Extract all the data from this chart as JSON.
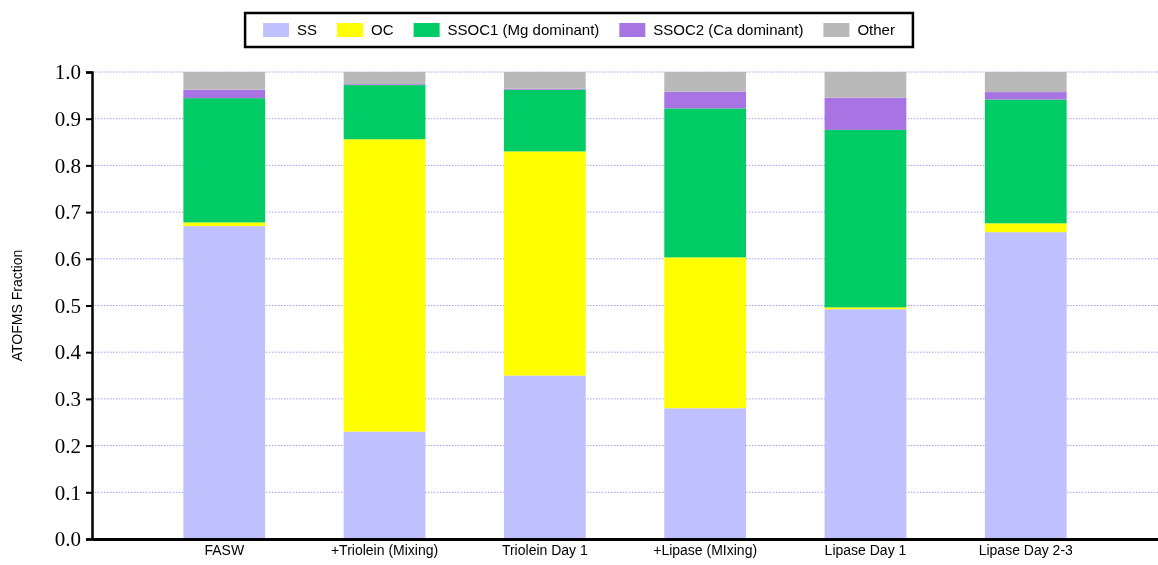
{
  "chart_data": {
    "type": "bar",
    "stacked": true,
    "ylabel": "ATOFMS Fraction",
    "categories": [
      "FASW",
      "+Triolein (Mixing)",
      "Triolein Day 1",
      "+Lipase (MIxing)",
      "Lipase Day 1",
      "Lipase Day 2-3"
    ],
    "series": [
      {
        "name": "SS",
        "color": "#bfc0fe",
        "values": [
          0.67,
          0.23,
          0.35,
          0.28,
          0.492,
          0.657
        ]
      },
      {
        "name": "OC",
        "color": "#ffff00",
        "values": [
          0.008,
          0.626,
          0.48,
          0.323,
          0.004,
          0.019
        ]
      },
      {
        "name": "SSOC1 (Mg dominant)",
        "color": "#00cc66",
        "values": [
          0.266,
          0.116,
          0.132,
          0.319,
          0.38,
          0.265
        ]
      },
      {
        "name": "SSOC2 (Ca dominant)",
        "color": "#a874e4",
        "values": [
          0.018,
          0.002,
          0.002,
          0.036,
          0.069,
          0.016
        ]
      },
      {
        "name": "Other",
        "color": "#b9b9b9",
        "values": [
          0.038,
          0.026,
          0.036,
          0.042,
          0.055,
          0.043
        ]
      }
    ],
    "ylim": [
      0,
      1
    ],
    "yticks": [
      {
        "value": 0,
        "label": "0.0"
      },
      {
        "value": 0.1,
        "label": "0.1"
      },
      {
        "value": 0.2,
        "label": "0.2"
      },
      {
        "value": 0.3,
        "label": "0.3"
      },
      {
        "value": 0.4,
        "label": "0.4"
      },
      {
        "value": 0.5,
        "label": "0.5"
      },
      {
        "value": 0.6,
        "label": "0.6"
      },
      {
        "value": 0.7,
        "label": "0.7"
      },
      {
        "value": 0.8,
        "label": "0.8"
      },
      {
        "value": 0.9,
        "label": "0.9"
      },
      {
        "value": 1,
        "label": "1.0"
      }
    ],
    "grid": "y",
    "legend": "top"
  }
}
